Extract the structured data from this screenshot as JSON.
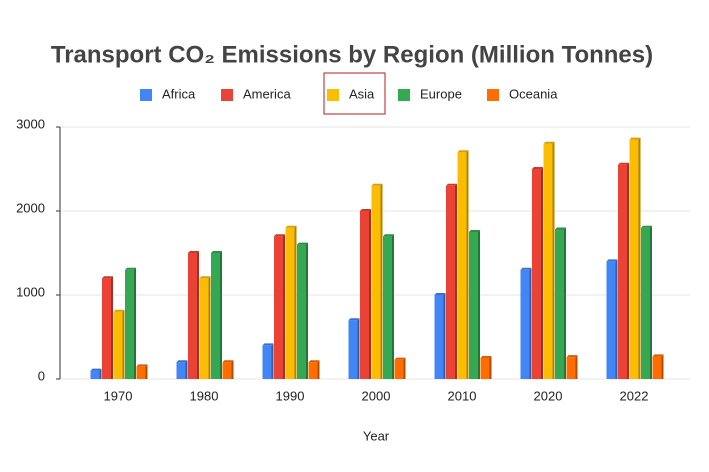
{
  "chart_data": {
    "type": "bar",
    "title": "Transport CO₂ Emissions by Region (Million Tonnes)",
    "x_label": "Year",
    "categories": [
      "1970",
      "1980",
      "1990",
      "2000",
      "2010",
      "2020",
      "2022"
    ],
    "series": [
      {
        "name": "Africa",
        "color": "#4285f4",
        "values": [
          100,
          200,
          400,
          700,
          1000,
          1300,
          1400
        ]
      },
      {
        "name": "America",
        "color": "#ea4335",
        "values": [
          1200,
          1500,
          1700,
          2000,
          2300,
          2500,
          2550
        ]
      },
      {
        "name": "Asia",
        "color": "#fbbc04",
        "values": [
          800,
          1200,
          1800,
          2300,
          2700,
          2800,
          2850
        ]
      },
      {
        "name": "Europe",
        "color": "#34a853",
        "values": [
          1300,
          1500,
          1600,
          1700,
          1750,
          1780,
          1800
        ]
      },
      {
        "name": "Oceania",
        "color": "#ff6d01",
        "values": [
          150,
          200,
          200,
          230,
          250,
          260,
          270
        ]
      }
    ],
    "ylim": [
      0,
      3000
    ],
    "yticks": [
      0,
      1000,
      2000,
      3000
    ],
    "grid": true,
    "legend": "top"
  }
}
